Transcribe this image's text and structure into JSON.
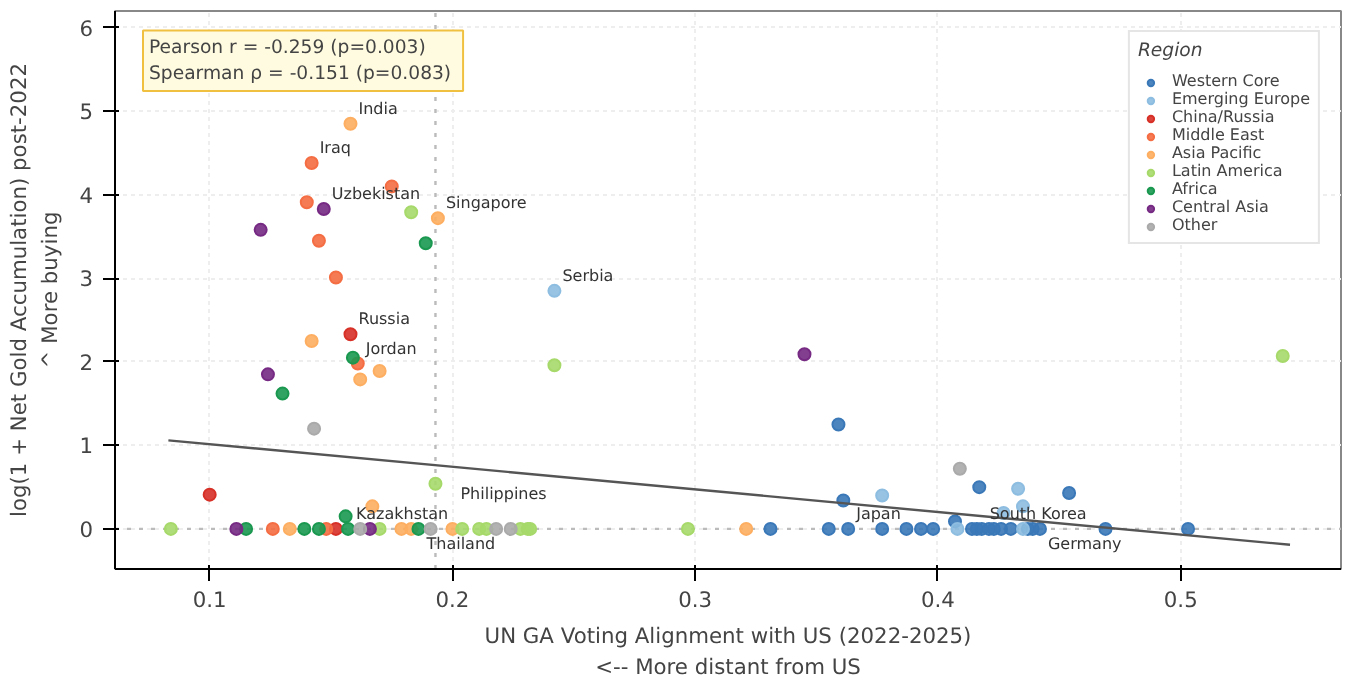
{
  "chart_data": {
    "type": "scatter",
    "xlabel": "UN GA Voting Alignment with US (2022-2025)\n<-- More distant from US",
    "ylabel": "log(1 + Net Gold Accumulation) post-2022\n^ More buying",
    "legend_title": "Region",
    "legend": "top right",
    "grid": true,
    "marker": "circle",
    "xlim": [
      0.061,
      0.566
    ],
    "ylim": [
      -0.48,
      6.2
    ],
    "xticks": [
      {
        "value": 0.1,
        "label": "0.1"
      },
      {
        "value": 0.2,
        "label": "0.2"
      },
      {
        "value": 0.3,
        "label": "0.3"
      },
      {
        "value": 0.4,
        "label": "0.4"
      },
      {
        "value": 0.5,
        "label": "0.5"
      }
    ],
    "yticks": [
      0,
      1,
      2,
      3,
      4,
      5,
      6
    ],
    "series": [
      {
        "name": "Western Core",
        "color": "#3a78b8",
        "x": [
          0.359,
          0.417,
          0.454,
          0.361,
          0.407,
          0.331,
          0.355,
          0.363,
          0.377,
          0.387,
          0.393,
          0.398,
          0.414,
          0.416,
          0.418,
          0.421,
          0.423,
          0.426,
          0.43,
          0.437,
          0.439,
          0.442,
          0.469,
          0.503
        ],
        "values": [
          1.25,
          0.5,
          0.43,
          0.34,
          0.09,
          0,
          0,
          0,
          0,
          0,
          0,
          0,
          0,
          0,
          0,
          0,
          0,
          0,
          0,
          0,
          0,
          0,
          0,
          0
        ]
      },
      {
        "name": "Emerging Europe",
        "color": "#8dbde0",
        "x": [
          0.242,
          0.433,
          0.377,
          0.435,
          0.427,
          0.408,
          0.435
        ],
        "values": [
          2.85,
          0.48,
          0.4,
          0.27,
          0.19,
          0,
          0
        ]
      },
      {
        "name": "China/Russia",
        "color": "#d73027",
        "x": [
          0.158,
          0.1,
          0.152
        ],
        "values": [
          2.33,
          0.41,
          0
        ]
      },
      {
        "name": "Middle East",
        "color": "#f46d43",
        "x": [
          0.142,
          0.175,
          0.14,
          0.145,
          0.152,
          0.161,
          0.126,
          0.148
        ],
        "values": [
          4.38,
          4.1,
          3.91,
          3.45,
          3.01,
          1.98,
          0,
          0
        ]
      },
      {
        "name": "Asia Pacific",
        "color": "#fdae61",
        "x": [
          0.158,
          0.194,
          0.142,
          0.17,
          0.162,
          0.167,
          0.133,
          0.179,
          0.183,
          0.2,
          0.321
        ],
        "values": [
          4.85,
          3.72,
          2.25,
          1.89,
          1.79,
          0.27,
          0,
          0,
          0,
          0,
          0
        ]
      },
      {
        "name": "Latin America",
        "color": "#a6d96a",
        "x": [
          0.183,
          0.242,
          0.193,
          0.542,
          0.084,
          0.17,
          0.204,
          0.211,
          0.214,
          0.228,
          0.231,
          0.232,
          0.297
        ],
        "values": [
          3.79,
          1.96,
          0.54,
          2.07,
          0,
          0,
          0,
          0,
          0,
          0,
          0,
          0,
          0
        ]
      },
      {
        "name": "Africa",
        "color": "#1a9850",
        "x": [
          0.189,
          0.159,
          0.13,
          0.156,
          0.115,
          0.139,
          0.145,
          0.157,
          0.186
        ],
        "values": [
          3.42,
          2.05,
          1.62,
          0.15,
          0,
          0,
          0,
          0,
          0
        ]
      },
      {
        "name": "Central Asia",
        "color": "#762a83",
        "x": [
          0.147,
          0.121,
          0.124,
          0.345,
          0.111,
          0.166
        ],
        "values": [
          3.83,
          3.58,
          1.85,
          2.09,
          0,
          0
        ]
      },
      {
        "name": "Other",
        "color": "#aaaaaa",
        "x": [
          0.143,
          0.409,
          0.162,
          0.191,
          0.218,
          0.224
        ],
        "values": [
          1.2,
          0.72,
          0,
          0,
          0,
          0
        ]
      },
      {
        "type": "line",
        "marker": "none",
        "color": "#555555",
        "x": [
          0.083,
          0.545
        ],
        "values": [
          1.06,
          -0.19
        ]
      }
    ],
    "ref_lines": [
      {
        "axis": "x",
        "value": 0.193,
        "color": "#bbbbbb",
        "line_style": "dotted"
      },
      {
        "axis": "y",
        "value": 0,
        "color": "#bbbbbb",
        "line_style": "dotted"
      }
    ],
    "annotations": [
      "Pearson r = -0.259  (p=0.003)\nSpearman ρ = -0.151  (p=0.083)",
      {
        "text": "India",
        "x": 0.158,
        "y": 4.85
      },
      {
        "text": "Iraq",
        "x": 0.142,
        "y": 4.38
      },
      {
        "text": "Uzbekistan",
        "x": 0.147,
        "y": 3.83
      },
      {
        "text": "Singapore",
        "x": 0.194,
        "y": 3.72
      },
      {
        "text": "Serbia",
        "x": 0.242,
        "y": 2.85
      },
      {
        "text": "Russia",
        "x": 0.158,
        "y": 2.33
      },
      {
        "text": "Jordan",
        "x": 0.161,
        "y": 1.98
      },
      {
        "text": "Kazakhstan",
        "x": 0.157,
        "y": 0
      },
      {
        "text": "Thailand",
        "x": 0.186,
        "y": 0
      },
      {
        "text": "Philippines",
        "x": 0.2,
        "y": 0
      },
      {
        "text": "Japan",
        "x": 0.363,
        "y": 0
      },
      {
        "text": "South Korea",
        "x": 0.418,
        "y": 0
      },
      {
        "text": "Germany",
        "x": 0.442,
        "y": 0
      }
    ]
  }
}
